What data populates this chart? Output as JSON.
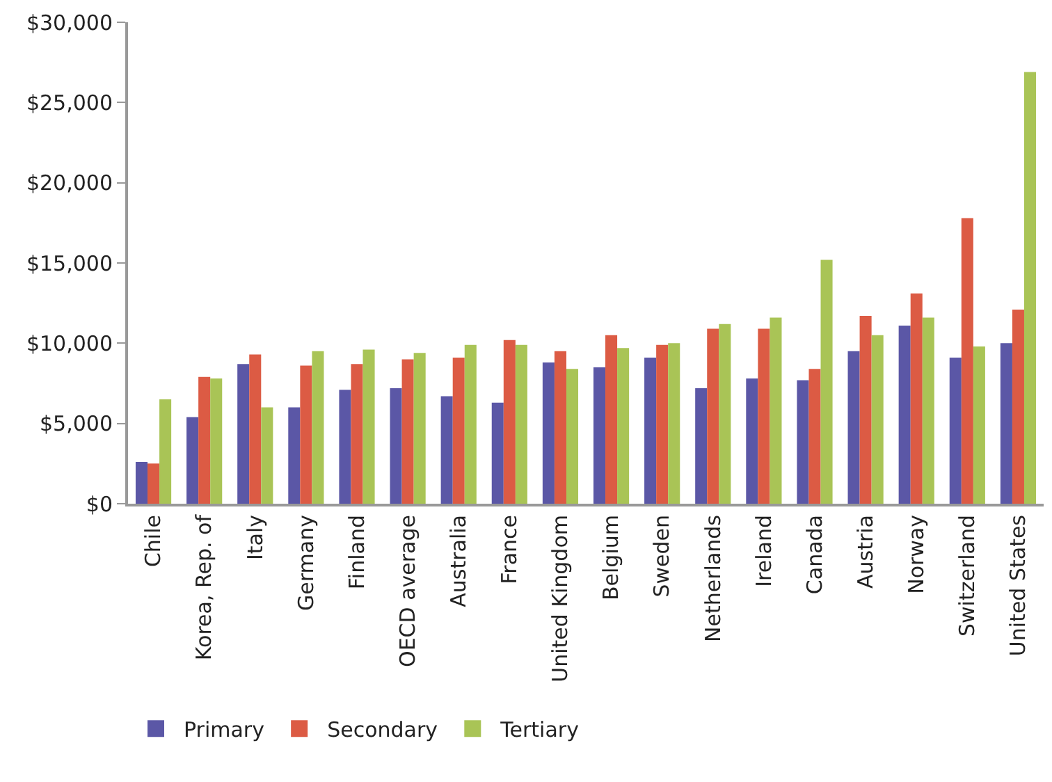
{
  "chart_data": {
    "type": "bar",
    "categories": [
      "Chile",
      "Korea, Rep. of",
      "Italy",
      "Germany",
      "Finland",
      "OECD average",
      "Australia",
      "France",
      "United Kingdom",
      "Belgium",
      "Sweden",
      "Netherlands",
      "Ireland",
      "Canada",
      "Austria",
      "Norway",
      "Switzerland",
      "United States"
    ],
    "series": [
      {
        "name": "Primary",
        "color": "#5b57a6",
        "values": [
          2600,
          5400,
          8700,
          6000,
          7100,
          7200,
          6700,
          6300,
          8800,
          8500,
          9100,
          7200,
          7800,
          7700,
          9500,
          11100,
          9100,
          10000
        ]
      },
      {
        "name": "Secondary",
        "color": "#dc5b44",
        "values": [
          2500,
          7900,
          9300,
          8600,
          8700,
          9000,
          9100,
          10200,
          9500,
          10500,
          9900,
          10900,
          10900,
          8400,
          11700,
          13100,
          17800,
          12100
        ]
      },
      {
        "name": "Tertiary",
        "color": "#a9c456",
        "values": [
          6500,
          7800,
          6000,
          9500,
          9600,
          9400,
          9900,
          9900,
          8400,
          9700,
          10000,
          11200,
          11600,
          15200,
          10500,
          11600,
          9800,
          26900
        ]
      }
    ],
    "ylim": [
      0,
      30000
    ],
    "yticks": [
      {
        "value": 0,
        "label": "$0"
      },
      {
        "value": 5000,
        "label": "$5,000"
      },
      {
        "value": 10000,
        "label": "$10,000"
      },
      {
        "value": 15000,
        "label": "$15,000"
      },
      {
        "value": 20000,
        "label": "$20,000"
      },
      {
        "value": 25000,
        "label": "$25,000"
      },
      {
        "value": 30000,
        "label": "$30,000"
      }
    ],
    "legend": "bottom"
  }
}
